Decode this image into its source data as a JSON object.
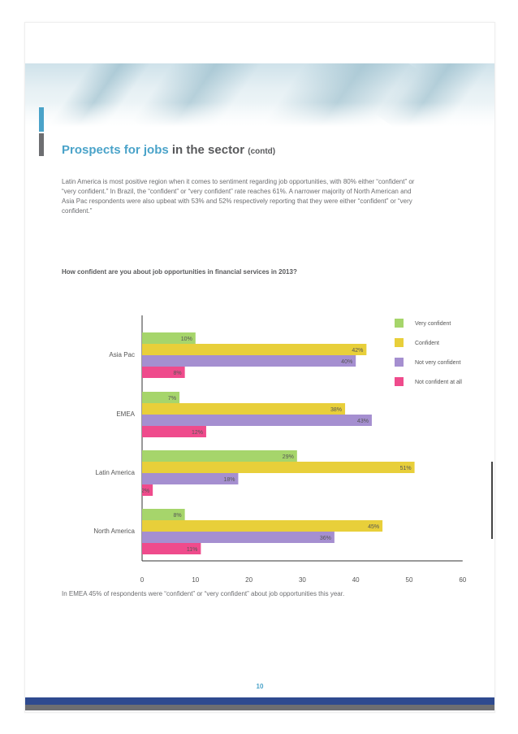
{
  "header": {
    "title_highlight": "Prospects for jobs",
    "title_main": " in the sector",
    "title_suffix": "(contd)"
  },
  "intro_text": "Latin America is most positive region when it comes to sentiment regarding job opportunities, with 80% either “confident” or “very confident.” In Brazil, the “confident” or “very confident” rate reaches 61%. A narrower majority of North American and Asia Pac respondents were also upbeat with 53% and 52% respectively reporting that they were either “confident” or “very confident.”",
  "question": "How confident are you about job opportunities in financial services in 2013?",
  "footnote": "In EMEA 45% of respondents were “confident” or “very confident” about job opportunities this year.",
  "page_number": "10",
  "chart_data": {
    "type": "bar",
    "orientation": "horizontal",
    "categories": [
      "Asia Pac",
      "EMEA",
      "Latin America",
      "North America"
    ],
    "series": [
      {
        "name": "Very confident",
        "color": "#a6d56b",
        "values": [
          10,
          7,
          29,
          8
        ],
        "labels": [
          "10%",
          "7%",
          "29%",
          "8%"
        ]
      },
      {
        "name": "Confident",
        "color": "#e8cf3a",
        "values": [
          42,
          38,
          51,
          45
        ],
        "labels": [
          "42%",
          "38%",
          "51%",
          "45%"
        ]
      },
      {
        "name": "Not very confident",
        "color": "#a58fd0",
        "values": [
          40,
          43,
          18,
          36
        ],
        "labels": [
          "40%",
          "43%",
          "18%",
          "36%"
        ]
      },
      {
        "name": "Not confident at all",
        "color": "#ef4b8c",
        "values": [
          8,
          12,
          2,
          11
        ],
        "labels": [
          "8%",
          "12%",
          "2%",
          "11%"
        ]
      }
    ],
    "xlim": [
      0,
      60
    ],
    "xticks": [
      "0",
      "10",
      "20",
      "30",
      "40",
      "50",
      "60"
    ],
    "legend_position": "top-right",
    "grid": false
  }
}
